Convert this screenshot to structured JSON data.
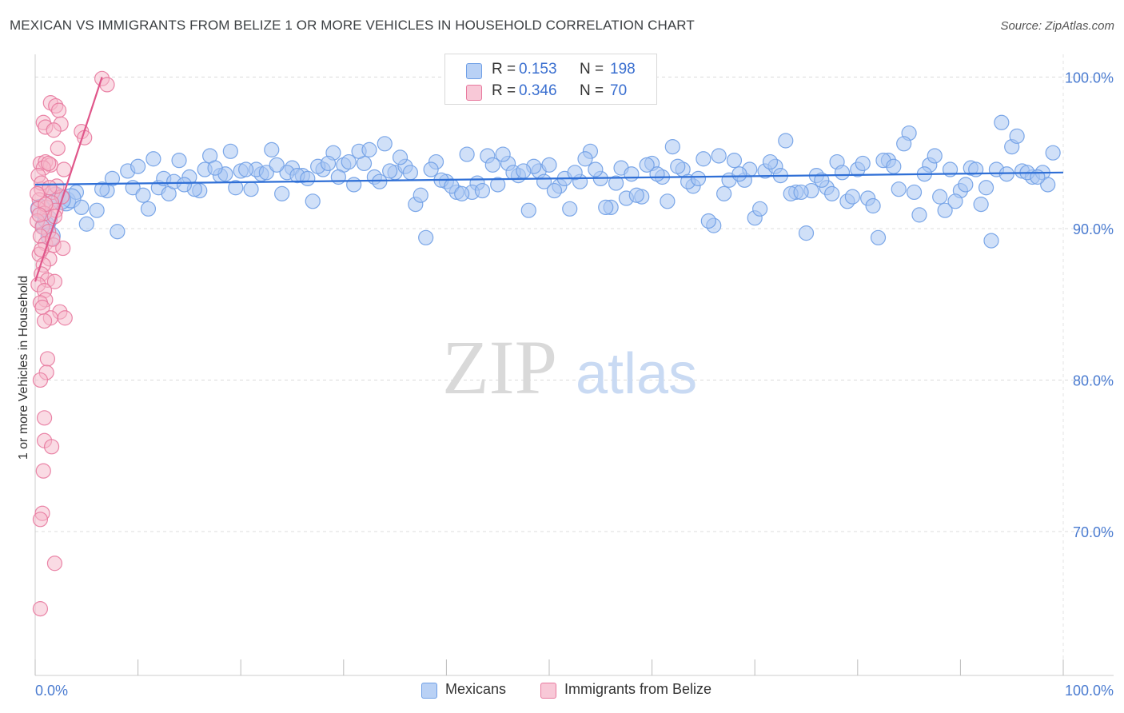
{
  "header": {
    "title": "MEXICAN VS IMMIGRANTS FROM BELIZE 1 OR MORE VEHICLES IN HOUSEHOLD CORRELATION CHART",
    "source": "Source: ZipAtlas.com"
  },
  "watermark": {
    "zip": "ZIP",
    "atlas": "atlas"
  },
  "legend": {
    "rows": [
      {
        "r_label": "R =",
        "r_value": "0.153",
        "n_label": "N =",
        "n_value": "198",
        "color": "#a9c6f2"
      },
      {
        "r_label": "R =",
        "r_value": "0.346",
        "n_label": "N =",
        "n_value": "70",
        "color": "#f5b7ca"
      }
    ]
  },
  "bottom_legend": [
    {
      "label": "Mexicans",
      "color": "#a9c6f2"
    },
    {
      "label": "Immigrants from Belize",
      "color": "#f5b7ca"
    }
  ],
  "chart_data": {
    "type": "scatter",
    "title": "MEXICAN VS IMMIGRANTS FROM BELIZE 1 OR MORE VEHICLES IN HOUSEHOLD CORRELATION CHART",
    "xlabel": "",
    "ylabel": "1 or more Vehicles in Household",
    "xlim": [
      0,
      100
    ],
    "ylim": [
      60.5,
      101.5
    ],
    "x_tick_labels": [
      "0.0%",
      "100.0%"
    ],
    "y_ticks": [
      70,
      80,
      90,
      100
    ],
    "y_tick_labels": [
      "70.0%",
      "80.0%",
      "90.0%",
      "100.0%"
    ],
    "grid": true,
    "legend_placement": "top-center",
    "series": [
      {
        "name": "Mexicans",
        "color": "#6f9fe6",
        "fill": "#a9c6f2",
        "trend": {
          "x": [
            0,
            100
          ],
          "y": [
            92.9,
            93.7
          ]
        },
        "points": [
          [
            0.5,
            91.3
          ],
          [
            1.0,
            90.2
          ],
          [
            1.5,
            89.5
          ],
          [
            2.0,
            92.1
          ],
          [
            3.0,
            91.8
          ],
          [
            4.0,
            92.4
          ],
          [
            5.0,
            90.3
          ],
          [
            6.0,
            91.2
          ],
          [
            7.0,
            92.5
          ],
          [
            8.0,
            89.8
          ],
          [
            9.0,
            93.8
          ],
          [
            10.0,
            94.1
          ],
          [
            11.0,
            91.3
          ],
          [
            12.0,
            92.7
          ],
          [
            13.0,
            92.3
          ],
          [
            14.0,
            94.5
          ],
          [
            15.0,
            93.4
          ],
          [
            16.0,
            92.5
          ],
          [
            17.0,
            94.8
          ],
          [
            18.0,
            93.5
          ],
          [
            19.0,
            95.1
          ],
          [
            20.0,
            93.8
          ],
          [
            21.0,
            92.6
          ],
          [
            22.0,
            93.6
          ],
          [
            23.0,
            95.2
          ],
          [
            24.0,
            92.3
          ],
          [
            25.0,
            94.0
          ],
          [
            26.0,
            93.5
          ],
          [
            27.0,
            91.8
          ],
          [
            28.0,
            93.9
          ],
          [
            29.0,
            95.0
          ],
          [
            30.0,
            94.2
          ],
          [
            31.0,
            92.9
          ],
          [
            32.0,
            94.3
          ],
          [
            33.0,
            93.4
          ],
          [
            34.0,
            95.6
          ],
          [
            35.0,
            93.7
          ],
          [
            36.0,
            94.1
          ],
          [
            37.0,
            91.6
          ],
          [
            38.0,
            89.4
          ],
          [
            39.0,
            94.4
          ],
          [
            40.0,
            93.1
          ],
          [
            41.0,
            92.4
          ],
          [
            42.0,
            94.9
          ],
          [
            43.0,
            93.0
          ],
          [
            44.0,
            94.8
          ],
          [
            45.0,
            92.9
          ],
          [
            46.0,
            94.3
          ],
          [
            47.0,
            93.5
          ],
          [
            48.0,
            91.2
          ],
          [
            49.0,
            93.8
          ],
          [
            50.0,
            94.2
          ],
          [
            51.0,
            92.8
          ],
          [
            52.0,
            91.3
          ],
          [
            53.0,
            93.1
          ],
          [
            54.0,
            95.1
          ],
          [
            55.0,
            93.3
          ],
          [
            56.0,
            91.4
          ],
          [
            57.0,
            94.0
          ],
          [
            58.0,
            93.6
          ],
          [
            59.0,
            92.1
          ],
          [
            60.0,
            94.3
          ],
          [
            61.0,
            93.4
          ],
          [
            62.0,
            95.4
          ],
          [
            63.0,
            93.9
          ],
          [
            64.0,
            92.8
          ],
          [
            65.0,
            94.6
          ],
          [
            66.0,
            90.2
          ],
          [
            67.0,
            92.3
          ],
          [
            68.0,
            94.5
          ],
          [
            69.0,
            93.2
          ],
          [
            70.0,
            90.7
          ],
          [
            71.0,
            93.8
          ],
          [
            72.0,
            94.1
          ],
          [
            73.0,
            95.8
          ],
          [
            74.0,
            92.4
          ],
          [
            75.0,
            89.7
          ],
          [
            76.0,
            93.5
          ],
          [
            77.0,
            92.7
          ],
          [
            78.0,
            94.4
          ],
          [
            79.0,
            91.8
          ],
          [
            80.0,
            93.9
          ],
          [
            81.0,
            92.0
          ],
          [
            82.0,
            89.4
          ],
          [
            83.0,
            94.5
          ],
          [
            84.0,
            92.6
          ],
          [
            85.0,
            96.3
          ],
          [
            86.0,
            90.9
          ],
          [
            87.0,
            94.2
          ],
          [
            88.0,
            92.1
          ],
          [
            89.0,
            93.9
          ],
          [
            90.0,
            92.5
          ],
          [
            91.0,
            94.0
          ],
          [
            92.0,
            91.6
          ],
          [
            93.0,
            89.2
          ],
          [
            94.0,
            97.0
          ],
          [
            95.0,
            95.4
          ],
          [
            96.0,
            93.8
          ],
          [
            97.0,
            93.4
          ],
          [
            3.5,
            92.0
          ],
          [
            6.5,
            92.6
          ],
          [
            9.5,
            92.7
          ],
          [
            12.5,
            93.3
          ],
          [
            15.5,
            92.6
          ],
          [
            18.5,
            93.6
          ],
          [
            21.5,
            93.9
          ],
          [
            24.5,
            93.7
          ],
          [
            27.5,
            94.1
          ],
          [
            30.5,
            94.4
          ],
          [
            33.5,
            93.1
          ],
          [
            36.5,
            93.7
          ],
          [
            39.5,
            93.2
          ],
          [
            42.5,
            92.4
          ],
          [
            45.5,
            94.9
          ],
          [
            48.5,
            94.1
          ],
          [
            51.5,
            93.3
          ],
          [
            54.5,
            93.9
          ],
          [
            57.5,
            92.0
          ],
          [
            60.5,
            93.6
          ],
          [
            63.5,
            93.1
          ],
          [
            66.5,
            94.8
          ],
          [
            69.5,
            93.9
          ],
          [
            72.5,
            93.5
          ],
          [
            75.5,
            92.5
          ],
          [
            78.5,
            93.7
          ],
          [
            81.5,
            91.5
          ],
          [
            84.5,
            95.6
          ],
          [
            87.5,
            94.8
          ],
          [
            90.5,
            92.9
          ],
          [
            93.5,
            93.9
          ],
          [
            96.5,
            93.7
          ],
          [
            98.0,
            93.7
          ],
          [
            99.0,
            95.0
          ],
          [
            98.5,
            92.9
          ],
          [
            92.5,
            92.7
          ],
          [
            88.5,
            91.2
          ],
          [
            85.5,
            92.4
          ],
          [
            82.5,
            94.5
          ],
          [
            79.5,
            92.1
          ],
          [
            76.5,
            93.2
          ],
          [
            73.5,
            92.3
          ],
          [
            70.5,
            91.3
          ],
          [
            67.5,
            93.2
          ],
          [
            64.5,
            93.3
          ],
          [
            61.5,
            91.8
          ],
          [
            58.5,
            92.2
          ],
          [
            55.5,
            91.4
          ],
          [
            52.5,
            93.7
          ],
          [
            49.5,
            93.1
          ],
          [
            46.5,
            93.7
          ],
          [
            43.5,
            92.5
          ],
          [
            40.5,
            92.8
          ],
          [
            37.5,
            92.2
          ],
          [
            34.5,
            93.8
          ],
          [
            31.5,
            95.1
          ],
          [
            28.5,
            94.3
          ],
          [
            25.5,
            93.5
          ],
          [
            22.5,
            93.7
          ],
          [
            19.5,
            92.7
          ],
          [
            16.5,
            93.9
          ],
          [
            13.5,
            93.1
          ],
          [
            10.5,
            92.2
          ],
          [
            7.5,
            93.3
          ],
          [
            4.5,
            91.4
          ],
          [
            2.5,
            91.9
          ],
          [
            1.2,
            90.6
          ],
          [
            11.5,
            94.6
          ],
          [
            17.5,
            94.0
          ],
          [
            23.5,
            94.2
          ],
          [
            29.5,
            93.4
          ],
          [
            35.5,
            94.7
          ],
          [
            41.5,
            92.3
          ],
          [
            47.5,
            93.8
          ],
          [
            53.5,
            94.6
          ],
          [
            59.5,
            94.2
          ],
          [
            65.5,
            90.5
          ],
          [
            71.5,
            94.4
          ],
          [
            77.5,
            92.3
          ],
          [
            83.5,
            94.1
          ],
          [
            89.5,
            91.8
          ],
          [
            95.5,
            96.1
          ],
          [
            97.5,
            93.4
          ],
          [
            94.5,
            93.6
          ],
          [
            91.5,
            93.9
          ],
          [
            86.5,
            93.6
          ],
          [
            80.5,
            94.3
          ],
          [
            74.5,
            92.4
          ],
          [
            68.5,
            93.6
          ],
          [
            62.5,
            94.1
          ],
          [
            56.5,
            93.0
          ],
          [
            50.5,
            92.5
          ],
          [
            44.5,
            94.2
          ],
          [
            38.5,
            93.9
          ],
          [
            32.5,
            95.2
          ],
          [
            26.5,
            93.3
          ],
          [
            20.5,
            93.9
          ],
          [
            14.5,
            92.9
          ]
        ]
      },
      {
        "name": "Immigrants from Belize",
        "color": "#e8799e",
        "fill": "#f5b7ca",
        "trend": {
          "x": [
            0,
            6.5
          ],
          "y": [
            86.5,
            100
          ]
        },
        "points": [
          [
            6.5,
            99.9
          ],
          [
            7.0,
            99.5
          ],
          [
            1.5,
            98.3
          ],
          [
            2.0,
            98.1
          ],
          [
            2.3,
            97.8
          ],
          [
            0.8,
            97.0
          ],
          [
            2.5,
            96.9
          ],
          [
            1.0,
            96.7
          ],
          [
            1.8,
            96.5
          ],
          [
            4.5,
            96.4
          ],
          [
            4.8,
            96.0
          ],
          [
            2.2,
            95.3
          ],
          [
            0.5,
            94.3
          ],
          [
            1.0,
            94.4
          ],
          [
            1.5,
            94.2
          ],
          [
            0.8,
            94.0
          ],
          [
            2.8,
            93.9
          ],
          [
            0.3,
            93.5
          ],
          [
            0.6,
            92.6
          ],
          [
            1.7,
            92.4
          ],
          [
            2.6,
            92.1
          ],
          [
            0.4,
            91.9
          ],
          [
            1.1,
            91.4
          ],
          [
            1.6,
            91.7
          ],
          [
            2.0,
            91.2
          ],
          [
            0.3,
            91.3
          ],
          [
            0.9,
            91.0
          ],
          [
            0.2,
            90.5
          ],
          [
            0.7,
            90.1
          ],
          [
            1.3,
            89.8
          ],
          [
            0.5,
            89.5
          ],
          [
            1.0,
            89.0
          ],
          [
            1.8,
            88.9
          ],
          [
            0.4,
            88.3
          ],
          [
            1.4,
            88.0
          ],
          [
            0.8,
            87.6
          ],
          [
            2.7,
            88.7
          ],
          [
            0.6,
            87.0
          ],
          [
            1.2,
            86.6
          ],
          [
            0.3,
            86.3
          ],
          [
            1.9,
            86.5
          ],
          [
            0.9,
            85.9
          ],
          [
            1.0,
            85.3
          ],
          [
            0.5,
            85.1
          ],
          [
            0.7,
            84.8
          ],
          [
            2.4,
            84.5
          ],
          [
            1.5,
            84.1
          ],
          [
            2.9,
            84.1
          ],
          [
            0.9,
            83.9
          ],
          [
            1.2,
            81.4
          ],
          [
            1.1,
            80.5
          ],
          [
            0.5,
            80.0
          ],
          [
            0.9,
            77.5
          ],
          [
            0.9,
            76.0
          ],
          [
            1.6,
            75.6
          ],
          [
            0.8,
            74.0
          ],
          [
            0.7,
            71.2
          ],
          [
            0.5,
            70.8
          ],
          [
            1.9,
            67.9
          ],
          [
            0.5,
            64.9
          ],
          [
            1.3,
            94.3
          ],
          [
            0.6,
            93.0
          ],
          [
            2.1,
            92.8
          ],
          [
            1.4,
            92.7
          ],
          [
            0.2,
            92.3
          ],
          [
            1.9,
            90.8
          ],
          [
            1.0,
            91.6
          ],
          [
            0.4,
            90.9
          ],
          [
            1.7,
            89.3
          ],
          [
            0.6,
            88.6
          ]
        ]
      }
    ]
  }
}
